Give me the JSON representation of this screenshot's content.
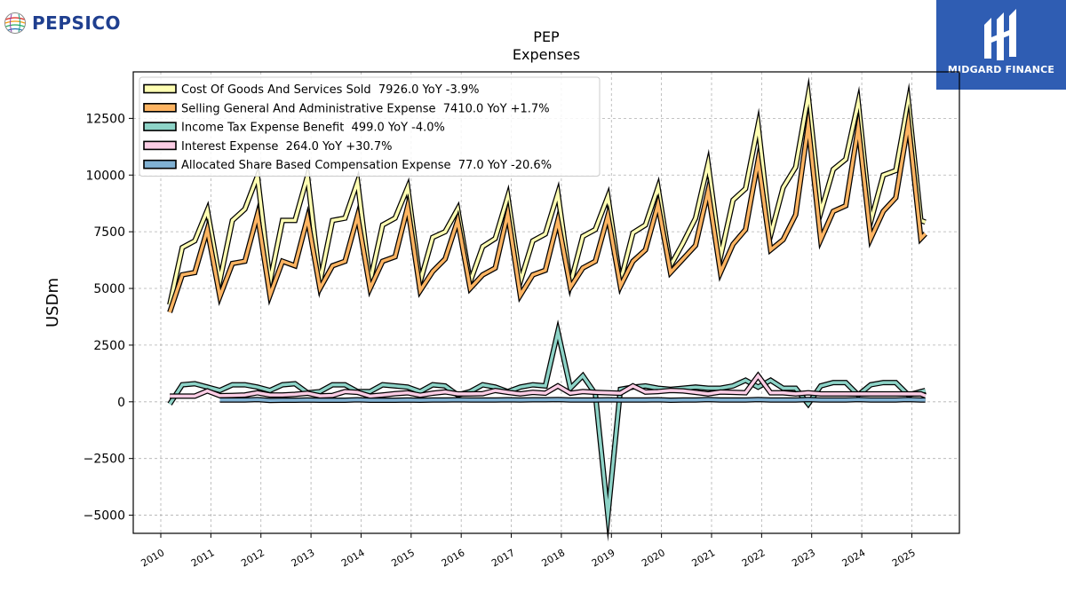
{
  "logos": {
    "left_brand": "PEPSICO",
    "right_brand": "MIDGARD FINANCE"
  },
  "chart_data": {
    "type": "line",
    "title": "PEP",
    "subtitle": "Expenses",
    "xlabel": "",
    "ylabel": "USDm",
    "xlim": [
      2009.45,
      2025.95
    ],
    "ylim": [
      -5800,
      14550
    ],
    "x_ticks": [
      "2010",
      "2011",
      "2012",
      "2013",
      "2014",
      "2015",
      "2016",
      "2017",
      "2018",
      "2019",
      "2020",
      "2021",
      "2022",
      "2023",
      "2024",
      "2025"
    ],
    "y_ticks": [
      -5000,
      -2500,
      0,
      2500,
      5000,
      7500,
      10000,
      12500
    ],
    "y_tick_labels": [
      "−5000",
      "−2500",
      "0",
      "2500",
      "5000",
      "7500",
      "10000",
      "12500"
    ],
    "grid": true,
    "legend_position": "top-left",
    "series": [
      {
        "name": "Cost Of Goods And Services Sold  7926.0 YoY -3.9%",
        "color": "#ffffb3",
        "x": [
          2010.18,
          2010.43,
          2010.68,
          2010.93,
          2011.18,
          2011.43,
          2011.68,
          2011.93,
          2012.18,
          2012.43,
          2012.68,
          2012.93,
          2013.18,
          2013.43,
          2013.68,
          2013.93,
          2014.18,
          2014.43,
          2014.68,
          2014.93,
          2015.18,
          2015.43,
          2015.68,
          2015.93,
          2016.18,
          2016.43,
          2016.68,
          2016.93,
          2017.18,
          2017.43,
          2017.68,
          2017.93,
          2018.18,
          2018.43,
          2018.68,
          2018.93,
          2019.18,
          2019.43,
          2019.68,
          2019.93,
          2020.18,
          2020.43,
          2020.68,
          2020.93,
          2021.18,
          2021.43,
          2021.68,
          2021.93,
          2022.18,
          2022.43,
          2022.68,
          2022.93,
          2023.18,
          2023.43,
          2023.68,
          2023.93,
          2024.18,
          2024.43,
          2024.68,
          2024.93,
          2025.18,
          2025.27
        ],
        "values": [
          4280,
          6800,
          7100,
          8450,
          5350,
          8000,
          8500,
          9950,
          5300,
          8000,
          8000,
          9950,
          5300,
          8000,
          8100,
          9700,
          5300,
          7800,
          8100,
          9450,
          5300,
          7250,
          7500,
          8500,
          5300,
          6850,
          7200,
          9050,
          5300,
          7100,
          7400,
          9200,
          5200,
          7300,
          7600,
          9050,
          5300,
          7450,
          7800,
          9450,
          6000,
          7000,
          8100,
          10500,
          6400,
          8900,
          9400,
          12200,
          7350,
          9450,
          10350,
          13500,
          8350,
          10250,
          10700,
          13200,
          7950,
          10000,
          10200,
          13250,
          8000,
          7926
        ]
      },
      {
        "name": "Selling General And Administrative Expense  7410.0 YoY +1.7%",
        "color": "#fdb462",
        "x": [
          2010.18,
          2010.43,
          2010.68,
          2010.93,
          2011.18,
          2011.43,
          2011.68,
          2011.93,
          2012.18,
          2012.43,
          2012.68,
          2012.93,
          2013.18,
          2013.43,
          2013.68,
          2013.93,
          2014.18,
          2014.43,
          2014.68,
          2014.93,
          2015.18,
          2015.43,
          2015.68,
          2015.93,
          2016.18,
          2016.43,
          2016.68,
          2016.93,
          2017.18,
          2017.43,
          2017.68,
          2017.93,
          2018.18,
          2018.43,
          2018.68,
          2018.93,
          2019.18,
          2019.43,
          2019.68,
          2019.93,
          2020.18,
          2020.43,
          2020.68,
          2020.93,
          2021.18,
          2021.43,
          2021.68,
          2021.93,
          2022.18,
          2022.43,
          2022.68,
          2022.93,
          2023.18,
          2023.43,
          2023.68,
          2023.93,
          2024.18,
          2024.43,
          2024.68,
          2024.93,
          2025.18,
          2025.27
        ],
        "values": [
          3950,
          5600,
          5700,
          7600,
          4650,
          6100,
          6200,
          8250,
          4700,
          6200,
          6000,
          8100,
          5000,
          6000,
          6200,
          8200,
          5000,
          6200,
          6400,
          8600,
          4900,
          5750,
          6300,
          8000,
          5000,
          5600,
          5900,
          8300,
          4700,
          5600,
          5800,
          8000,
          5050,
          5900,
          6200,
          8200,
          5100,
          6200,
          6700,
          8700,
          5700,
          6300,
          6900,
          9300,
          5700,
          6950,
          7600,
          10650,
          6700,
          7150,
          8250,
          12200,
          7150,
          8400,
          8650,
          12100,
          7200,
          8400,
          9000,
          12300,
          7200,
          7410
        ]
      },
      {
        "name": "Income Tax Expense Benefit  499.0 YoY -4.0%",
        "color": "#8dd3c7",
        "x": [
          2010.18,
          2010.43,
          2010.68,
          2010.93,
          2011.18,
          2011.43,
          2011.68,
          2011.93,
          2012.18,
          2012.43,
          2012.68,
          2012.93,
          2013.18,
          2013.43,
          2013.68,
          2013.93,
          2014.18,
          2014.43,
          2014.68,
          2014.93,
          2015.18,
          2015.43,
          2015.68,
          2015.93,
          2016.18,
          2016.43,
          2016.68,
          2016.93,
          2017.18,
          2017.43,
          2017.68,
          2017.93,
          2018.18,
          2018.43,
          2018.68,
          2018.93,
          2019.18,
          2019.43,
          2019.68,
          2019.93,
          2020.18,
          2020.43,
          2020.68,
          2020.93,
          2021.18,
          2021.43,
          2021.68,
          2021.93,
          2022.18,
          2022.43,
          2022.68,
          2022.93,
          2023.18,
          2023.43,
          2023.68,
          2023.93,
          2024.18,
          2024.43,
          2024.68,
          2024.93,
          2025.18,
          2025.27
        ],
        "values": [
          -100,
          750,
          800,
          650,
          500,
          750,
          750,
          650,
          500,
          750,
          800,
          400,
          450,
          750,
          750,
          450,
          450,
          750,
          700,
          650,
          450,
          750,
          700,
          300,
          450,
          750,
          650,
          450,
          650,
          750,
          700,
          3100,
          600,
          1150,
          350,
          -5000,
          550,
          650,
          700,
          600,
          550,
          600,
          650,
          600,
          600,
          700,
          950,
          650,
          950,
          600,
          600,
          -100,
          700,
          850,
          850,
          300,
          750,
          850,
          850,
          300,
          450,
          499
        ]
      },
      {
        "name": "Interest Expense  264.0 YoY +30.7%",
        "color": "#fccde5",
        "x": [
          2010.18,
          2010.43,
          2010.68,
          2010.93,
          2011.18,
          2011.43,
          2011.68,
          2011.93,
          2012.18,
          2012.43,
          2012.68,
          2012.93,
          2013.18,
          2013.43,
          2013.68,
          2013.93,
          2014.18,
          2014.43,
          2014.68,
          2014.93,
          2015.18,
          2015.43,
          2015.68,
          2015.93,
          2016.18,
          2016.43,
          2016.68,
          2016.93,
          2017.18,
          2017.43,
          2017.68,
          2017.93,
          2018.18,
          2018.43,
          2018.68,
          2018.93,
          2019.18,
          2019.43,
          2019.68,
          2019.93,
          2020.18,
          2020.43,
          2020.68,
          2020.93,
          2021.18,
          2021.43,
          2021.68,
          2021.93,
          2022.18,
          2022.43,
          2022.68,
          2022.93,
          2023.18,
          2023.43,
          2023.68,
          2023.93,
          2024.18,
          2024.43,
          2024.68,
          2024.93,
          2025.18,
          2025.27
        ],
        "values": [
          250,
          250,
          250,
          480,
          270,
          280,
          300,
          400,
          300,
          300,
          330,
          380,
          260,
          280,
          450,
          420,
          250,
          300,
          360,
          400,
          290,
          380,
          440,
          350,
          350,
          360,
          500,
          420,
          350,
          420,
          380,
          700,
          380,
          450,
          420,
          400,
          380,
          700,
          430,
          450,
          500,
          480,
          420,
          350,
          430,
          420,
          400,
          1150,
          400,
          400,
          350,
          400,
          350,
          350,
          350,
          350,
          350,
          350,
          350,
          350,
          350,
          264
        ]
      },
      {
        "name": "Allocated Share Based Compensation Expense  77.0 YoY -20.6%",
        "color": "#80b1d3",
        "x": [
          2011.18,
          2011.43,
          2011.68,
          2011.93,
          2012.18,
          2012.43,
          2012.68,
          2012.93,
          2013.18,
          2013.43,
          2013.68,
          2013.93,
          2014.18,
          2014.43,
          2014.68,
          2014.93,
          2015.18,
          2015.43,
          2015.68,
          2015.93,
          2016.18,
          2016.43,
          2016.68,
          2016.93,
          2017.18,
          2017.43,
          2017.68,
          2017.93,
          2018.18,
          2018.43,
          2018.68,
          2018.93,
          2019.18,
          2019.43,
          2019.68,
          2019.93,
          2020.18,
          2020.43,
          2020.68,
          2020.93,
          2021.18,
          2021.43,
          2021.68,
          2021.93,
          2022.18,
          2022.43,
          2022.68,
          2022.93,
          2023.18,
          2023.43,
          2023.68,
          2023.93,
          2024.18,
          2024.43,
          2024.68,
          2024.93,
          2025.18,
          2025.27
        ],
        "values": [
          80,
          80,
          80,
          100,
          60,
          70,
          70,
          80,
          70,
          70,
          70,
          90,
          70,
          70,
          70,
          80,
          70,
          80,
          80,
          90,
          80,
          80,
          80,
          90,
          80,
          90,
          90,
          100,
          80,
          80,
          80,
          90,
          80,
          80,
          80,
          90,
          70,
          80,
          80,
          100,
          80,
          80,
          80,
          100,
          80,
          80,
          80,
          100,
          80,
          80,
          80,
          100,
          80,
          80,
          80,
          100,
          80,
          77
        ]
      }
    ]
  }
}
